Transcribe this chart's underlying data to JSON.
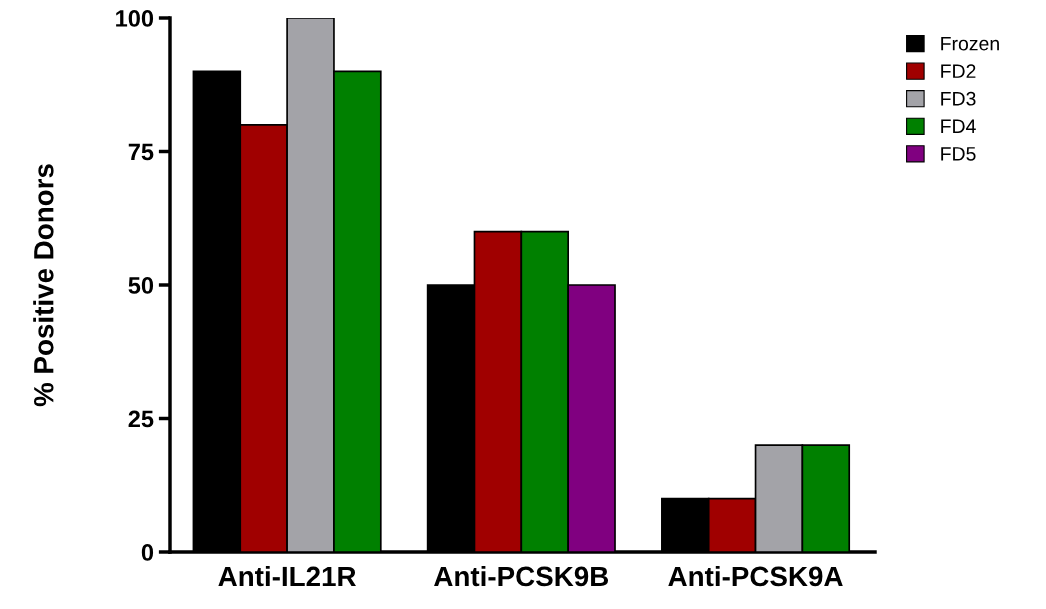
{
  "chart_data": {
    "type": "bar",
    "ylabel": "% Positive Donors",
    "categories": [
      "Anti-IL21R",
      "Anti-PCSK9B",
      "Anti-PCSK9A"
    ],
    "series": [
      {
        "name": "Frozen",
        "color": "#000000",
        "values": [
          90,
          50,
          10
        ]
      },
      {
        "name": "FD2",
        "color": "#a00000",
        "values": [
          80,
          60,
          10
        ]
      },
      {
        "name": "FD3",
        "color": "#a3a3a8",
        "values": [
          100,
          null,
          20
        ]
      },
      {
        "name": "FD4",
        "color": "#008000",
        "values": [
          90,
          60,
          20
        ]
      },
      {
        "name": "FD5",
        "color": "#800080",
        "values": [
          null,
          50,
          null
        ]
      }
    ],
    "ylim": [
      0,
      100
    ],
    "yticks": [
      0,
      25,
      50,
      75,
      100
    ],
    "grid": false,
    "legend": "top right"
  }
}
